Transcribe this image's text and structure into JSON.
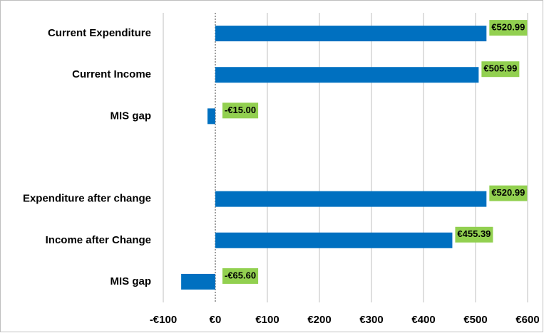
{
  "chart_data": {
    "type": "barh",
    "categories": [
      "Current Expenditure",
      "Current Income",
      "MIS gap",
      null,
      "Expenditure after change",
      "Income after Change",
      "MIS gap"
    ],
    "values": [
      520.99,
      505.99,
      -15.0,
      null,
      520.99,
      455.39,
      -65.6
    ],
    "value_labels": [
      "€520.99",
      "€505.99",
      "-€15.00",
      null,
      "€520.99",
      "€455.39",
      "-€65.60"
    ],
    "color": "#0070c0",
    "label_color": "#92d050",
    "xlim": [
      -100,
      600
    ],
    "xticks": [
      {
        "value": -100,
        "label": "-€100"
      },
      {
        "value": 0,
        "label": "€0"
      },
      {
        "value": 100,
        "label": "€100"
      },
      {
        "value": 200,
        "label": "€200"
      },
      {
        "value": 300,
        "label": "€300"
      },
      {
        "value": 400,
        "label": "€400"
      },
      {
        "value": 500,
        "label": "€500"
      },
      {
        "value": 600,
        "label": "€600"
      }
    ],
    "grid": true
  }
}
